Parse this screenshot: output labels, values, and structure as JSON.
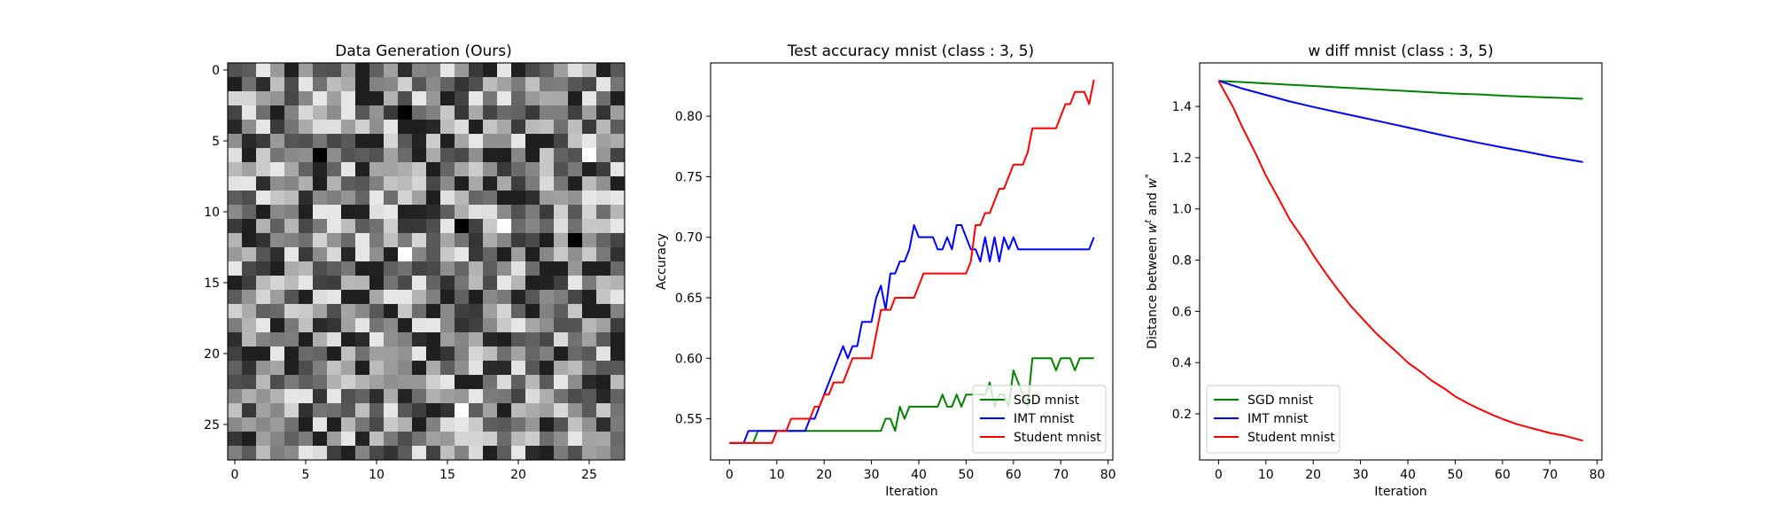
{
  "colors": {
    "sgd": "#008000",
    "imt": "#0000ff",
    "student": "#ff0000"
  },
  "chart_data": [
    {
      "type": "heatmap",
      "title": "Data Generation (Ours)",
      "colormap": "gray",
      "rows": 28,
      "cols": 28,
      "value_range": [
        0,
        1
      ],
      "xticks": [
        0,
        5,
        10,
        15,
        20,
        25
      ],
      "yticks": [
        0,
        5,
        10,
        15,
        20,
        25
      ],
      "darkest_cells": [
        [
          3,
          12
        ],
        [
          6,
          6
        ],
        [
          11,
          16
        ],
        [
          12,
          24
        ]
      ],
      "brightest_cells": [
        [
          13,
          12
        ],
        [
          6,
          25
        ],
        [
          11,
          19
        ],
        [
          24,
          16
        ]
      ]
    },
    {
      "type": "line",
      "title": "Test accuracy mnist (class : 3, 5)",
      "xlabel": "Iteration",
      "ylabel": "Accuracy",
      "xlim": [
        -4,
        81
      ],
      "ylim": [
        0.516,
        0.844
      ],
      "xticks": [
        0,
        10,
        20,
        30,
        40,
        50,
        60,
        70,
        80
      ],
      "yticks": [
        0.55,
        0.6,
        0.65,
        0.7,
        0.75,
        0.8
      ],
      "ytick_labels": [
        "0.55",
        "0.60",
        "0.65",
        "0.70",
        "0.75",
        "0.80"
      ],
      "legend_position": "lower-right",
      "series": [
        {
          "name": "SGD mnist",
          "color_key": "sgd",
          "x": [
            0,
            1,
            2,
            3,
            4,
            5,
            6,
            7,
            8,
            9,
            10,
            11,
            12,
            13,
            14,
            15,
            16,
            17,
            18,
            19,
            20,
            21,
            22,
            23,
            24,
            25,
            26,
            27,
            28,
            29,
            30,
            31,
            32,
            33,
            34,
            35,
            36,
            37,
            38,
            39,
            40,
            41,
            42,
            43,
            44,
            45,
            46,
            47,
            48,
            49,
            50,
            51,
            52,
            53,
            54,
            55,
            56,
            57,
            58,
            59,
            60,
            61,
            62,
            63,
            64,
            65,
            66,
            67,
            68,
            69,
            70,
            71,
            72,
            73,
            74,
            75,
            76,
            77
          ],
          "y": [
            0.53,
            0.53,
            0.53,
            0.53,
            0.53,
            0.53,
            0.54,
            0.54,
            0.54,
            0.54,
            0.54,
            0.54,
            0.54,
            0.54,
            0.54,
            0.54,
            0.54,
            0.54,
            0.54,
            0.54,
            0.54,
            0.54,
            0.54,
            0.54,
            0.54,
            0.54,
            0.54,
            0.54,
            0.54,
            0.54,
            0.54,
            0.54,
            0.54,
            0.55,
            0.55,
            0.54,
            0.56,
            0.55,
            0.56,
            0.56,
            0.56,
            0.56,
            0.56,
            0.56,
            0.56,
            0.57,
            0.56,
            0.56,
            0.57,
            0.56,
            0.57,
            0.57,
            0.57,
            0.57,
            0.57,
            0.58,
            0.56,
            0.57,
            0.57,
            0.56,
            0.59,
            0.58,
            0.57,
            0.56,
            0.6,
            0.6,
            0.6,
            0.6,
            0.6,
            0.59,
            0.6,
            0.6,
            0.6,
            0.59,
            0.6,
            0.6,
            0.6,
            0.6
          ]
        },
        {
          "name": "IMT mnist",
          "color_key": "imt",
          "x": [
            0,
            1,
            2,
            3,
            4,
            5,
            6,
            7,
            8,
            9,
            10,
            11,
            12,
            13,
            14,
            15,
            16,
            17,
            18,
            19,
            20,
            21,
            22,
            23,
            24,
            25,
            26,
            27,
            28,
            29,
            30,
            31,
            32,
            33,
            34,
            35,
            36,
            37,
            38,
            39,
            40,
            41,
            42,
            43,
            44,
            45,
            46,
            47,
            48,
            49,
            50,
            51,
            52,
            53,
            54,
            55,
            56,
            57,
            58,
            59,
            60,
            61,
            62,
            63,
            64,
            65,
            66,
            67,
            68,
            69,
            70,
            71,
            72,
            73,
            74,
            75,
            76,
            77
          ],
          "y": [
            0.53,
            0.53,
            0.53,
            0.53,
            0.54,
            0.54,
            0.54,
            0.54,
            0.54,
            0.54,
            0.54,
            0.54,
            0.54,
            0.54,
            0.54,
            0.54,
            0.54,
            0.55,
            0.55,
            0.56,
            0.57,
            0.58,
            0.59,
            0.6,
            0.61,
            0.6,
            0.61,
            0.61,
            0.63,
            0.63,
            0.63,
            0.65,
            0.66,
            0.64,
            0.67,
            0.67,
            0.68,
            0.68,
            0.69,
            0.71,
            0.7,
            0.7,
            0.7,
            0.7,
            0.69,
            0.69,
            0.7,
            0.69,
            0.71,
            0.71,
            0.7,
            0.69,
            0.69,
            0.68,
            0.7,
            0.68,
            0.7,
            0.68,
            0.7,
            0.69,
            0.7,
            0.69,
            0.69,
            0.69,
            0.69,
            0.69,
            0.69,
            0.69,
            0.69,
            0.69,
            0.69,
            0.69,
            0.69,
            0.69,
            0.69,
            0.69,
            0.69,
            0.7
          ]
        },
        {
          "name": "Student mnist",
          "color_key": "student",
          "x": [
            0,
            1,
            2,
            3,
            4,
            5,
            6,
            7,
            8,
            9,
            10,
            11,
            12,
            13,
            14,
            15,
            16,
            17,
            18,
            19,
            20,
            21,
            22,
            23,
            24,
            25,
            26,
            27,
            28,
            29,
            30,
            31,
            32,
            33,
            34,
            35,
            36,
            37,
            38,
            39,
            40,
            41,
            42,
            43,
            44,
            45,
            46,
            47,
            48,
            49,
            50,
            51,
            52,
            53,
            54,
            55,
            56,
            57,
            58,
            59,
            60,
            61,
            62,
            63,
            64,
            65,
            66,
            67,
            68,
            69,
            70,
            71,
            72,
            73,
            74,
            75,
            76,
            77
          ],
          "y": [
            0.53,
            0.53,
            0.53,
            0.53,
            0.53,
            0.53,
            0.53,
            0.53,
            0.53,
            0.53,
            0.54,
            0.54,
            0.54,
            0.55,
            0.55,
            0.55,
            0.55,
            0.55,
            0.56,
            0.56,
            0.57,
            0.57,
            0.58,
            0.58,
            0.58,
            0.59,
            0.6,
            0.6,
            0.6,
            0.6,
            0.6,
            0.62,
            0.64,
            0.64,
            0.64,
            0.65,
            0.65,
            0.65,
            0.65,
            0.65,
            0.66,
            0.67,
            0.67,
            0.67,
            0.67,
            0.67,
            0.67,
            0.67,
            0.67,
            0.67,
            0.67,
            0.68,
            0.71,
            0.71,
            0.72,
            0.72,
            0.73,
            0.74,
            0.74,
            0.75,
            0.76,
            0.76,
            0.76,
            0.77,
            0.79,
            0.79,
            0.79,
            0.79,
            0.79,
            0.79,
            0.8,
            0.81,
            0.81,
            0.82,
            0.82,
            0.82,
            0.81,
            0.83
          ]
        }
      ]
    },
    {
      "type": "line",
      "title": "w diff mnist (class : 3, 5)",
      "xlabel": "Iteration",
      "ylabel": "Distance between w^t and w^*",
      "ylabel_parts": {
        "prefix": "Distance between ",
        "w1": "w",
        "sup1": "t",
        "mid": " and ",
        "w2": "w",
        "sup2": "*"
      },
      "xlim": [
        -4,
        81
      ],
      "ylim": [
        0.02,
        1.57
      ],
      "xticks": [
        0,
        10,
        20,
        30,
        40,
        50,
        60,
        70,
        80
      ],
      "yticks": [
        0.2,
        0.4,
        0.6,
        0.8,
        1.0,
        1.2,
        1.4
      ],
      "ytick_labels": [
        "0.2",
        "0.4",
        "0.6",
        "0.8",
        "1.0",
        "1.2",
        "1.4"
      ],
      "legend_position": "lower-left",
      "series": [
        {
          "name": "SGD mnist",
          "color_key": "sgd",
          "x": [
            0,
            5,
            10,
            15,
            20,
            25,
            30,
            35,
            40,
            45,
            50,
            55,
            60,
            65,
            70,
            77
          ],
          "y": [
            1.5,
            1.495,
            1.49,
            1.485,
            1.48,
            1.475,
            1.47,
            1.465,
            1.46,
            1.455,
            1.45,
            1.447,
            1.442,
            1.438,
            1.435,
            1.43
          ]
        },
        {
          "name": "IMT mnist",
          "color_key": "imt",
          "x": [
            0,
            5,
            10,
            15,
            20,
            25,
            30,
            35,
            40,
            45,
            50,
            55,
            60,
            65,
            70,
            77
          ],
          "y": [
            1.5,
            1.47,
            1.445,
            1.42,
            1.398,
            1.378,
            1.358,
            1.338,
            1.318,
            1.297,
            1.277,
            1.258,
            1.24,
            1.223,
            1.205,
            1.183
          ]
        },
        {
          "name": "Student mnist",
          "color_key": "student",
          "x": [
            0,
            3,
            5,
            8,
            10,
            13,
            15,
            18,
            20,
            23,
            25,
            28,
            30,
            33,
            35,
            38,
            40,
            43,
            45,
            48,
            50,
            53,
            55,
            58,
            60,
            63,
            65,
            68,
            70,
            73,
            75,
            77
          ],
          "y": [
            1.5,
            1.4,
            1.32,
            1.21,
            1.13,
            1.03,
            0.96,
            0.88,
            0.82,
            0.74,
            0.69,
            0.62,
            0.58,
            0.52,
            0.485,
            0.435,
            0.4,
            0.36,
            0.33,
            0.295,
            0.268,
            0.238,
            0.22,
            0.195,
            0.18,
            0.16,
            0.15,
            0.135,
            0.125,
            0.115,
            0.105,
            0.095
          ]
        }
      ]
    }
  ]
}
